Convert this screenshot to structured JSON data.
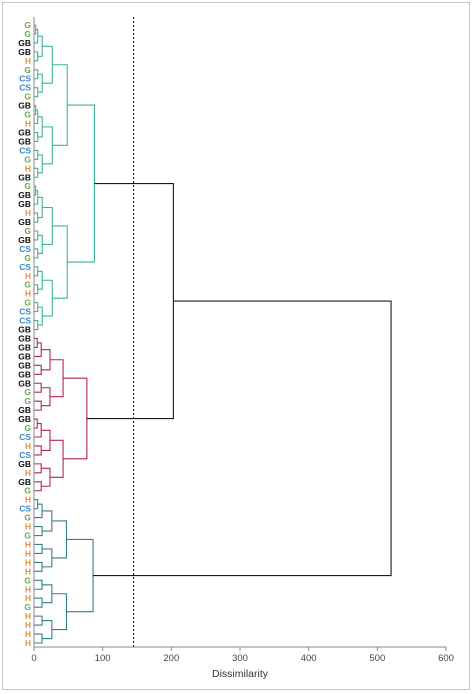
{
  "chart_data": {
    "type": "dendrogram",
    "xlabel": "Dissimilarity",
    "xlim": [
      0,
      600
    ],
    "x_ticks": [
      0,
      100,
      200,
      300,
      400,
      500,
      600
    ],
    "truncation_line": 145,
    "grid": false,
    "leaves": [
      "G",
      "G",
      "GB",
      "GB",
      "H",
      "G",
      "CS",
      "CS",
      "G",
      "GB",
      "G",
      "H",
      "GB",
      "GB",
      "CS",
      "G",
      "H",
      "GB",
      "G",
      "GB",
      "GB",
      "H",
      "GB",
      "G",
      "GB",
      "CS",
      "G",
      "CS",
      "H",
      "G",
      "H",
      "G",
      "CS",
      "CS",
      "GB",
      "GB",
      "GB",
      "GB",
      "GB",
      "GB",
      "GB",
      "G",
      "G",
      "GB",
      "GB",
      "G",
      "CS",
      "H",
      "CS",
      "GB",
      "H",
      "GB",
      "G",
      "H",
      "CS",
      "G",
      "H",
      "G",
      "H",
      "H",
      "H",
      "H",
      "G",
      "H",
      "H",
      "G",
      "H",
      "H",
      "H",
      "H"
    ],
    "cluster_colors": {
      "teal": "#3cb39a",
      "crimson": "#b0245b",
      "slate": "#3a7d8c",
      "root": "#1a1a1a"
    },
    "label_colors": {
      "G": "#6aa84f",
      "GB": "#111111",
      "H": "#e69138",
      "CS": "#3d85c6"
    },
    "clusters": [
      {
        "name": "teal",
        "leaf_range": [
          0,
          34
        ],
        "height": 88
      },
      {
        "name": "crimson",
        "leaf_range": [
          35,
          52
        ],
        "height": 77
      },
      {
        "name": "slate",
        "leaf_range": [
          53,
          69
        ],
        "height": 86
      }
    ],
    "root_merges": [
      {
        "children": [
          "teal",
          "crimson"
        ],
        "height": 203
      },
      {
        "children": [
          "teal+crimson",
          "slate"
        ],
        "height": 520
      }
    ]
  }
}
